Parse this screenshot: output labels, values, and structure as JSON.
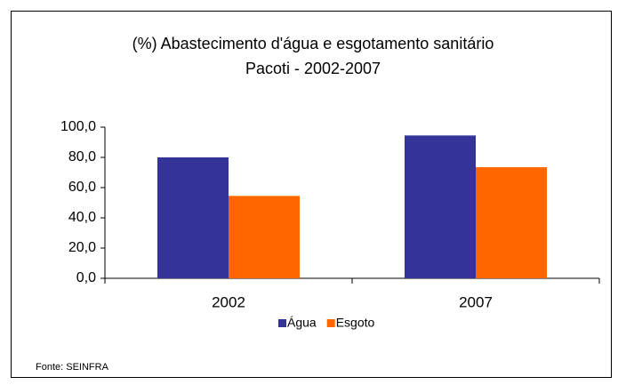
{
  "chart_data": {
    "type": "bar",
    "title": "(%) Abastecimento d'água e esgotamento sanitário",
    "subtitle": "Pacoti - 2002-2007",
    "categories": [
      "2002",
      "2007"
    ],
    "series": [
      {
        "name": "Água",
        "color": "#333399",
        "values": [
          80,
          94.5
        ]
      },
      {
        "name": "Esgoto",
        "color": "#ff6600",
        "values": [
          54.5,
          73.5
        ]
      }
    ],
    "ylim": [
      0,
      100
    ],
    "yticks": [
      {
        "value": 0,
        "label": "0,0"
      },
      {
        "value": 20,
        "label": "20,0"
      },
      {
        "value": 40,
        "label": "40,0"
      },
      {
        "value": 60,
        "label": "60,0"
      },
      {
        "value": 80,
        "label": "80,0"
      },
      {
        "value": 100,
        "label": "100,0"
      }
    ],
    "legend": "bottom",
    "source": "Fonte: SEINFRA"
  }
}
